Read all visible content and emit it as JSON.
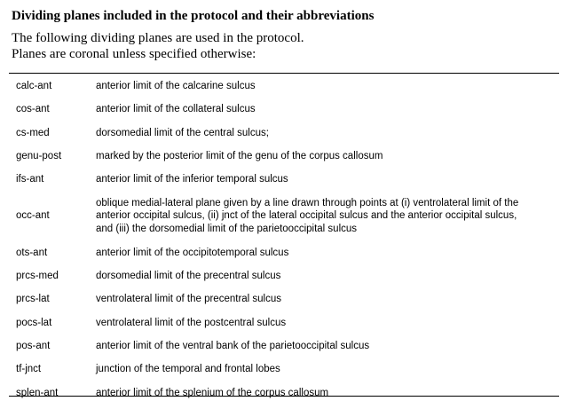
{
  "document": {
    "title": "Dividing planes included in the protocol and their abbreviations",
    "intro_lines": [
      "The following dividing planes are used in the protocol.",
      "Planes are coronal unless specified otherwise:"
    ]
  },
  "table": {
    "rows": [
      {
        "abbr": "calc-ant",
        "desc": [
          "anterior limit of the calcarine sulcus"
        ]
      },
      {
        "abbr": "cos-ant",
        "desc": [
          "anterior limit of the collateral sulcus"
        ]
      },
      {
        "abbr": "cs-med",
        "desc": [
          "dorsomedial limit of the central sulcus;"
        ]
      },
      {
        "abbr": "genu-post",
        "desc": [
          "marked by the posterior limit of the genu of the corpus callosum"
        ]
      },
      {
        "abbr": "ifs-ant",
        "desc": [
          "anterior limit of the inferior temporal sulcus"
        ]
      },
      {
        "abbr": "occ-ant",
        "desc": [
          "oblique medial-lateral plane given by a line drawn through points at (i) ventrolateral limit of the",
          "anterior occipital sulcus, (ii) jnct of the lateral occipital sulcus and the anterior occipital sulcus,",
          "and (iii) the dorsomedial limit of the parietooccipital sulcus"
        ]
      },
      {
        "abbr": "ots-ant",
        "desc": [
          "anterior limit of the occipitotemporal sulcus"
        ]
      },
      {
        "abbr": "prcs-med",
        "desc": [
          "dorsomedial limit of the precentral sulcus"
        ]
      },
      {
        "abbr": "prcs-lat",
        "desc": [
          "ventrolateral limit of the precentral sulcus"
        ]
      },
      {
        "abbr": "pocs-lat",
        "desc": [
          "ventrolateral limit of the postcentral sulcus"
        ]
      },
      {
        "abbr": "pos-ant",
        "desc": [
          "anterior limit of the ventral bank of the parietooccipital sulcus"
        ]
      },
      {
        "abbr": "tf-jnct",
        "desc": [
          "junction of the temporal and frontal lobes"
        ]
      },
      {
        "abbr": "splen-ant",
        "desc": [
          "anterior limit of the splenium of the corpus callosum"
        ]
      }
    ]
  }
}
